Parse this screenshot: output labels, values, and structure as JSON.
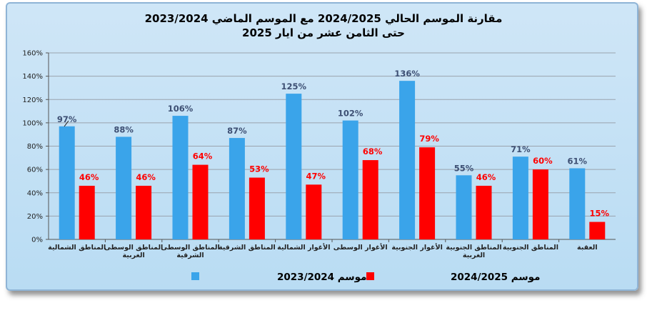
{
  "chart_data": {
    "type": "bar",
    "title_lines": [
      "مقارنة الموسم الحالي 2024/2025  مع الموسم الماضي  2023/2024",
      "حتى الثامن عشر من ايار 2025"
    ],
    "categories": [
      [
        "المناطق الشمالية"
      ],
      [
        "المناطق الوسطى",
        "الغربية"
      ],
      [
        "المناطق الوسطى",
        "الشرقية"
      ],
      [
        "المناطق الشرقية"
      ],
      [
        "الأغوار الشمالية"
      ],
      [
        "الأغوار الوسطى"
      ],
      [
        "الأغوار الجنوبية"
      ],
      [
        "المناطق الجنوبية",
        "الغربية"
      ],
      [
        "المناطق الجنوبية"
      ],
      [
        "العقبة"
      ]
    ],
    "series": [
      {
        "name": "موسم 2023/2024",
        "color": "#3aa4ea",
        "label_color": "#3d4f73",
        "values": [
          97,
          88,
          106,
          87,
          125,
          102,
          136,
          55,
          71,
          61
        ],
        "labels": [
          "97%",
          "88%",
          "106%",
          "87%",
          "125%",
          "102%",
          "136%",
          "55%",
          "71%",
          "61%"
        ]
      },
      {
        "name": "موسم 2024/2025",
        "color": "#ff0000",
        "label_color": "#ff0000",
        "values": [
          46,
          46,
          64,
          53,
          47,
          68,
          79,
          46,
          60,
          15
        ],
        "labels": [
          "46%",
          "46%",
          "64%",
          "53%",
          "47%",
          "68%",
          "79%",
          "46%",
          "60%",
          "15%"
        ]
      }
    ],
    "y_ticks": [
      "0%",
      "20%",
      "40%",
      "60%",
      "80%",
      "100%",
      "120%",
      "140%",
      "160%"
    ],
    "ylim": [
      0,
      160
    ],
    "grid": true,
    "legend_position": "bottom"
  }
}
